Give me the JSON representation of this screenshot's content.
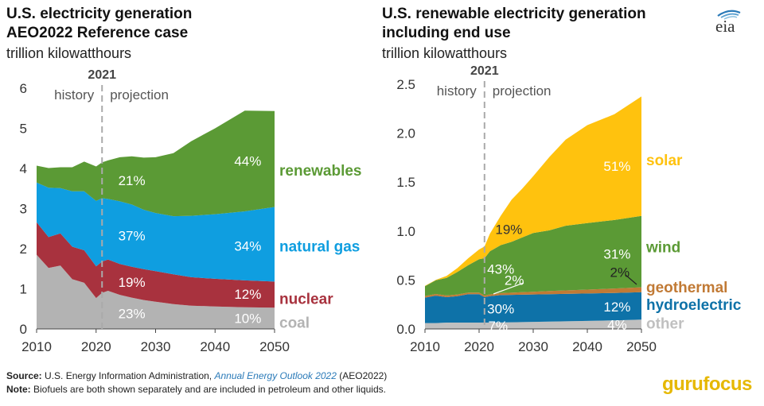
{
  "left_title": [
    "U.S. electricity generation",
    "AEO2022 Reference case"
  ],
  "left_units": "trillion kilowatthours",
  "right_title": [
    "U.S. renewable electricity generation",
    "including end use"
  ],
  "right_units": "trillion kilowatthours",
  "logo_text": "eia",
  "footer": {
    "source_label": "Source:",
    "source_text": "U.S. Energy Information Administration,",
    "source_pub": "Annual Energy Outlook 2022",
    "source_tail": "(AEO2022)",
    "note_label": "Note:",
    "note_text": "Biofuels are both shown separately and are included in petroleum and other liquids."
  },
  "watermark": {
    "part1": "guru",
    "part2": "focus"
  },
  "colors": {
    "coal": "#b3b3b3",
    "nuclear": "#a8323e",
    "natural_gas": "#0f9ee0",
    "renewables": "#5b9a35",
    "other": "#c0c0c0",
    "hydroelectric": "#0e72a8",
    "geothermal": "#c17a35",
    "wind": "#5b9a35",
    "solar": "#ffc20e",
    "divider": "#aaaaaa",
    "label_text": "#ffffff"
  },
  "chart_data": [
    {
      "type": "area",
      "stacked": true,
      "title": "U.S. electricity generation AEO2022 Reference case",
      "ylabel": "trillion kilowatthours",
      "ylim": [
        0,
        6
      ],
      "yticks": [
        0,
        1,
        2,
        3,
        4,
        5,
        6
      ],
      "xlim": [
        2010,
        2050
      ],
      "xticks": [
        2010,
        2020,
        2030,
        2040,
        2050
      ],
      "divider": {
        "x": 2021,
        "label": "2021",
        "left_label": "history",
        "right_label": "projection"
      },
      "x": [
        2010,
        2012,
        2014,
        2016,
        2018,
        2020,
        2021,
        2022,
        2024,
        2026,
        2028,
        2030,
        2033,
        2036,
        2040,
        2045,
        2050
      ],
      "series": [
        {
          "name": "coal",
          "color_key": "coal",
          "values": [
            1.85,
            1.52,
            1.58,
            1.24,
            1.15,
            0.77,
            0.9,
            0.95,
            0.85,
            0.78,
            0.72,
            0.68,
            0.62,
            0.58,
            0.56,
            0.54,
            0.53
          ],
          "labels": [
            {
              "x": 2026,
              "text": "23%"
            },
            {
              "x": 2045.5,
              "text": "10%"
            }
          ]
        },
        {
          "name": "nuclear",
          "color_key": "nuclear",
          "values": [
            0.81,
            0.77,
            0.8,
            0.81,
            0.81,
            0.79,
            0.78,
            0.78,
            0.77,
            0.77,
            0.77,
            0.76,
            0.74,
            0.71,
            0.69,
            0.67,
            0.65
          ],
          "labels": [
            {
              "x": 2026,
              "text": "19%"
            },
            {
              "x": 2045.5,
              "text": "12%"
            }
          ]
        },
        {
          "name": "natural gas",
          "color_key": "natural_gas",
          "values": [
            0.99,
            1.23,
            1.13,
            1.38,
            1.47,
            1.63,
            1.58,
            1.51,
            1.56,
            1.55,
            1.48,
            1.45,
            1.45,
            1.53,
            1.61,
            1.72,
            1.86
          ],
          "labels": [
            {
              "x": 2026,
              "text": "37%"
            },
            {
              "x": 2045.5,
              "text": "34%"
            }
          ]
        },
        {
          "name": "renewables",
          "color_key": "renewables",
          "values": [
            0.42,
            0.49,
            0.52,
            0.6,
            0.74,
            0.86,
            0.89,
            0.96,
            1.1,
            1.2,
            1.3,
            1.39,
            1.57,
            1.86,
            2.14,
            2.51,
            2.39
          ],
          "labels": [
            {
              "x": 2026,
              "text": "21%"
            },
            {
              "x": 2045.5,
              "text": "44%"
            }
          ]
        }
      ]
    },
    {
      "type": "area",
      "stacked": true,
      "title": "U.S. renewable electricity generation including end use",
      "ylabel": "trillion kilowatthours",
      "ylim": [
        0,
        2.5
      ],
      "yticks": [
        0.0,
        0.5,
        1.0,
        1.5,
        2.0,
        2.5
      ],
      "xlim": [
        2010,
        2050
      ],
      "xticks": [
        2010,
        2020,
        2030,
        2040,
        2050
      ],
      "divider": {
        "x": 2021,
        "label": "2021",
        "left_label": "history",
        "right_label": "projection"
      },
      "x": [
        2010,
        2012,
        2014,
        2016,
        2018,
        2020,
        2021,
        2022,
        2024,
        2026,
        2028,
        2030,
        2033,
        2036,
        2040,
        2045,
        2050
      ],
      "series": [
        {
          "name": "other",
          "color_key": "other",
          "values": [
            0.06,
            0.06,
            0.065,
            0.065,
            0.065,
            0.065,
            0.065,
            0.065,
            0.066,
            0.068,
            0.07,
            0.072,
            0.075,
            0.078,
            0.082,
            0.088,
            0.095
          ],
          "labels": [
            {
              "x": 2023.5,
              "text": "7%"
            },
            {
              "x": 2045.5,
              "text": "4%"
            }
          ]
        },
        {
          "name": "hydroelectric",
          "color_key": "hydroelectric",
          "values": [
            0.26,
            0.28,
            0.26,
            0.27,
            0.29,
            0.29,
            0.26,
            0.27,
            0.28,
            0.28,
            0.28,
            0.28,
            0.28,
            0.28,
            0.28,
            0.28,
            0.28
          ],
          "labels": [
            {
              "x": 2024,
              "text": "30%"
            },
            {
              "x": 2045.5,
              "text": "12%"
            }
          ]
        },
        {
          "name": "geothermal",
          "color_key": "geothermal",
          "values": [
            0.017,
            0.017,
            0.017,
            0.017,
            0.017,
            0.017,
            0.017,
            0.018,
            0.02,
            0.022,
            0.025,
            0.028,
            0.032,
            0.036,
            0.04,
            0.045,
            0.05
          ],
          "labels": []
        },
        {
          "name": "wind",
          "color_key": "wind",
          "values": [
            0.1,
            0.14,
            0.18,
            0.23,
            0.28,
            0.34,
            0.38,
            0.44,
            0.49,
            0.52,
            0.56,
            0.6,
            0.62,
            0.66,
            0.68,
            0.7,
            0.73
          ],
          "labels": [
            {
              "x": 2024,
              "text": "43%"
            },
            {
              "x": 2045.5,
              "text": "31%"
            }
          ]
        },
        {
          "name": "solar",
          "color_key": "solar",
          "values": [
            0.003,
            0.005,
            0.02,
            0.04,
            0.07,
            0.1,
            0.12,
            0.18,
            0.3,
            0.43,
            0.5,
            0.58,
            0.75,
            0.88,
            1.0,
            1.08,
            1.22
          ],
          "labels": [
            {
              "x": 2045.5,
              "text": "51%"
            }
          ]
        }
      ],
      "extra_labels": [
        {
          "text": "19%",
          "x": 2025.5,
          "y": 1.02,
          "color": "#333333"
        },
        {
          "text": "2%",
          "x": 2026.5,
          "y": 0.5,
          "color": "#ffffff"
        },
        {
          "text": "2%",
          "x": 2046,
          "y": 0.58,
          "color": "#222222"
        }
      ]
    }
  ],
  "left_legend": [
    {
      "text": "renewables",
      "color_key": "renewables"
    },
    {
      "text": "natural gas",
      "color_key": "natural_gas"
    },
    {
      "text": "nuclear",
      "color_key": "nuclear"
    },
    {
      "text": "coal",
      "color_key": "coal"
    }
  ],
  "right_legend": [
    {
      "text": "solar",
      "color_key": "solar"
    },
    {
      "text": "wind",
      "color_key": "wind"
    },
    {
      "text": "geothermal",
      "color_key": "geothermal"
    },
    {
      "text": "hydroelectric",
      "color_key": "hydroelectric"
    },
    {
      "text": "other",
      "color_key": "other"
    }
  ]
}
